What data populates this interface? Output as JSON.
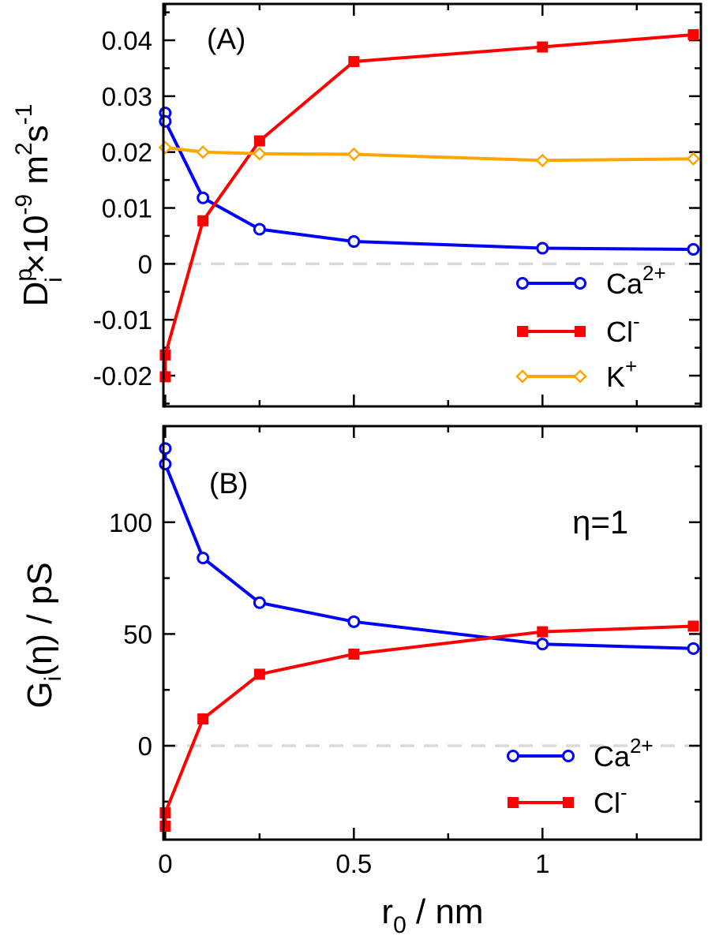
{
  "panels": {
    "A": {
      "tag": "(A)",
      "ylabel": {
        "base": "D",
        "sup": "p",
        "sub": "i",
        "rest": "×10",
        "exp1": "-9",
        "unit": " m",
        "exp2": "2",
        "unit2": "s",
        "exp3": "-1"
      },
      "yticks": [
        "-0.02",
        "-0.01",
        "0",
        "0.01",
        "0.02",
        "0.03",
        "0.04"
      ],
      "legend": [
        {
          "base": "Ca",
          "sup": "2+"
        },
        {
          "base": "Cl",
          "sup": "-"
        },
        {
          "base": "K",
          "sup": "+"
        }
      ]
    },
    "B": {
      "tag": "(B)",
      "annotation": "η=1",
      "ylabel": {
        "base": "G",
        "sub": "i",
        "rest": "(η) / pS"
      },
      "yticks": [
        "0",
        "50",
        "100"
      ],
      "legend": [
        {
          "base": "Ca",
          "sup": "2+"
        },
        {
          "base": "Cl",
          "sup": "-"
        }
      ]
    },
    "xticks": [
      "0",
      "0.5",
      "1"
    ],
    "xlabel": {
      "base": "r",
      "sub": "0",
      "rest": " / nm"
    }
  },
  "chart_data": [
    {
      "type": "line",
      "panel": "A",
      "xlim": [
        -0.005,
        1.42
      ],
      "ylim": [
        -0.0255,
        0.0465
      ],
      "x_ticks": [
        0,
        0.5,
        1
      ],
      "y_ticks": [
        -0.02,
        -0.01,
        0,
        0.01,
        0.02,
        0.03,
        0.04
      ],
      "zero_line": true,
      "legend_position": "bottom-right",
      "series": [
        {
          "name": "Ca2+",
          "color": "#0000ff",
          "marker": "circle-open",
          "x": [
            0,
            0,
            0.1,
            0.25,
            0.5,
            1.0,
            1.4
          ],
          "y": [
            0.027,
            0.0255,
            0.0118,
            0.0062,
            0.004,
            0.0028,
            0.0026
          ]
        },
        {
          "name": "Cl-",
          "color": "#ff0000",
          "marker": "square-filled",
          "x": [
            0,
            0,
            0.1,
            0.25,
            0.5,
            1.0,
            1.4
          ],
          "y": [
            -0.0202,
            -0.0163,
            0.0077,
            0.022,
            0.0362,
            0.0388,
            0.041
          ]
        },
        {
          "name": "K+",
          "color": "#ffa500",
          "marker": "diamond-open",
          "x": [
            0,
            0.1,
            0.25,
            0.5,
            1.0,
            1.4
          ],
          "y": [
            0.0208,
            0.02,
            0.0197,
            0.0196,
            0.0185,
            0.0188
          ]
        }
      ]
    },
    {
      "type": "line",
      "panel": "B",
      "xlim": [
        -0.005,
        1.42
      ],
      "ylim": [
        -42,
        143
      ],
      "x_ticks": [
        0,
        0.5,
        1
      ],
      "y_ticks": [
        0,
        50,
        100
      ],
      "zero_line": true,
      "legend_position": "bottom-right",
      "series": [
        {
          "name": "Ca2+",
          "color": "#0000ff",
          "marker": "circle-open",
          "x": [
            0,
            0,
            0.1,
            0.25,
            0.5,
            1.0,
            1.4
          ],
          "y": [
            133,
            126,
            84,
            64,
            55.5,
            45.5,
            43.5
          ]
        },
        {
          "name": "Cl-",
          "color": "#ff0000",
          "marker": "square-filled",
          "x": [
            0,
            0,
            0.1,
            0.25,
            0.5,
            1.0,
            1.4
          ],
          "y": [
            -36,
            -30,
            12,
            32,
            41,
            51,
            53.5
          ]
        }
      ]
    }
  ]
}
